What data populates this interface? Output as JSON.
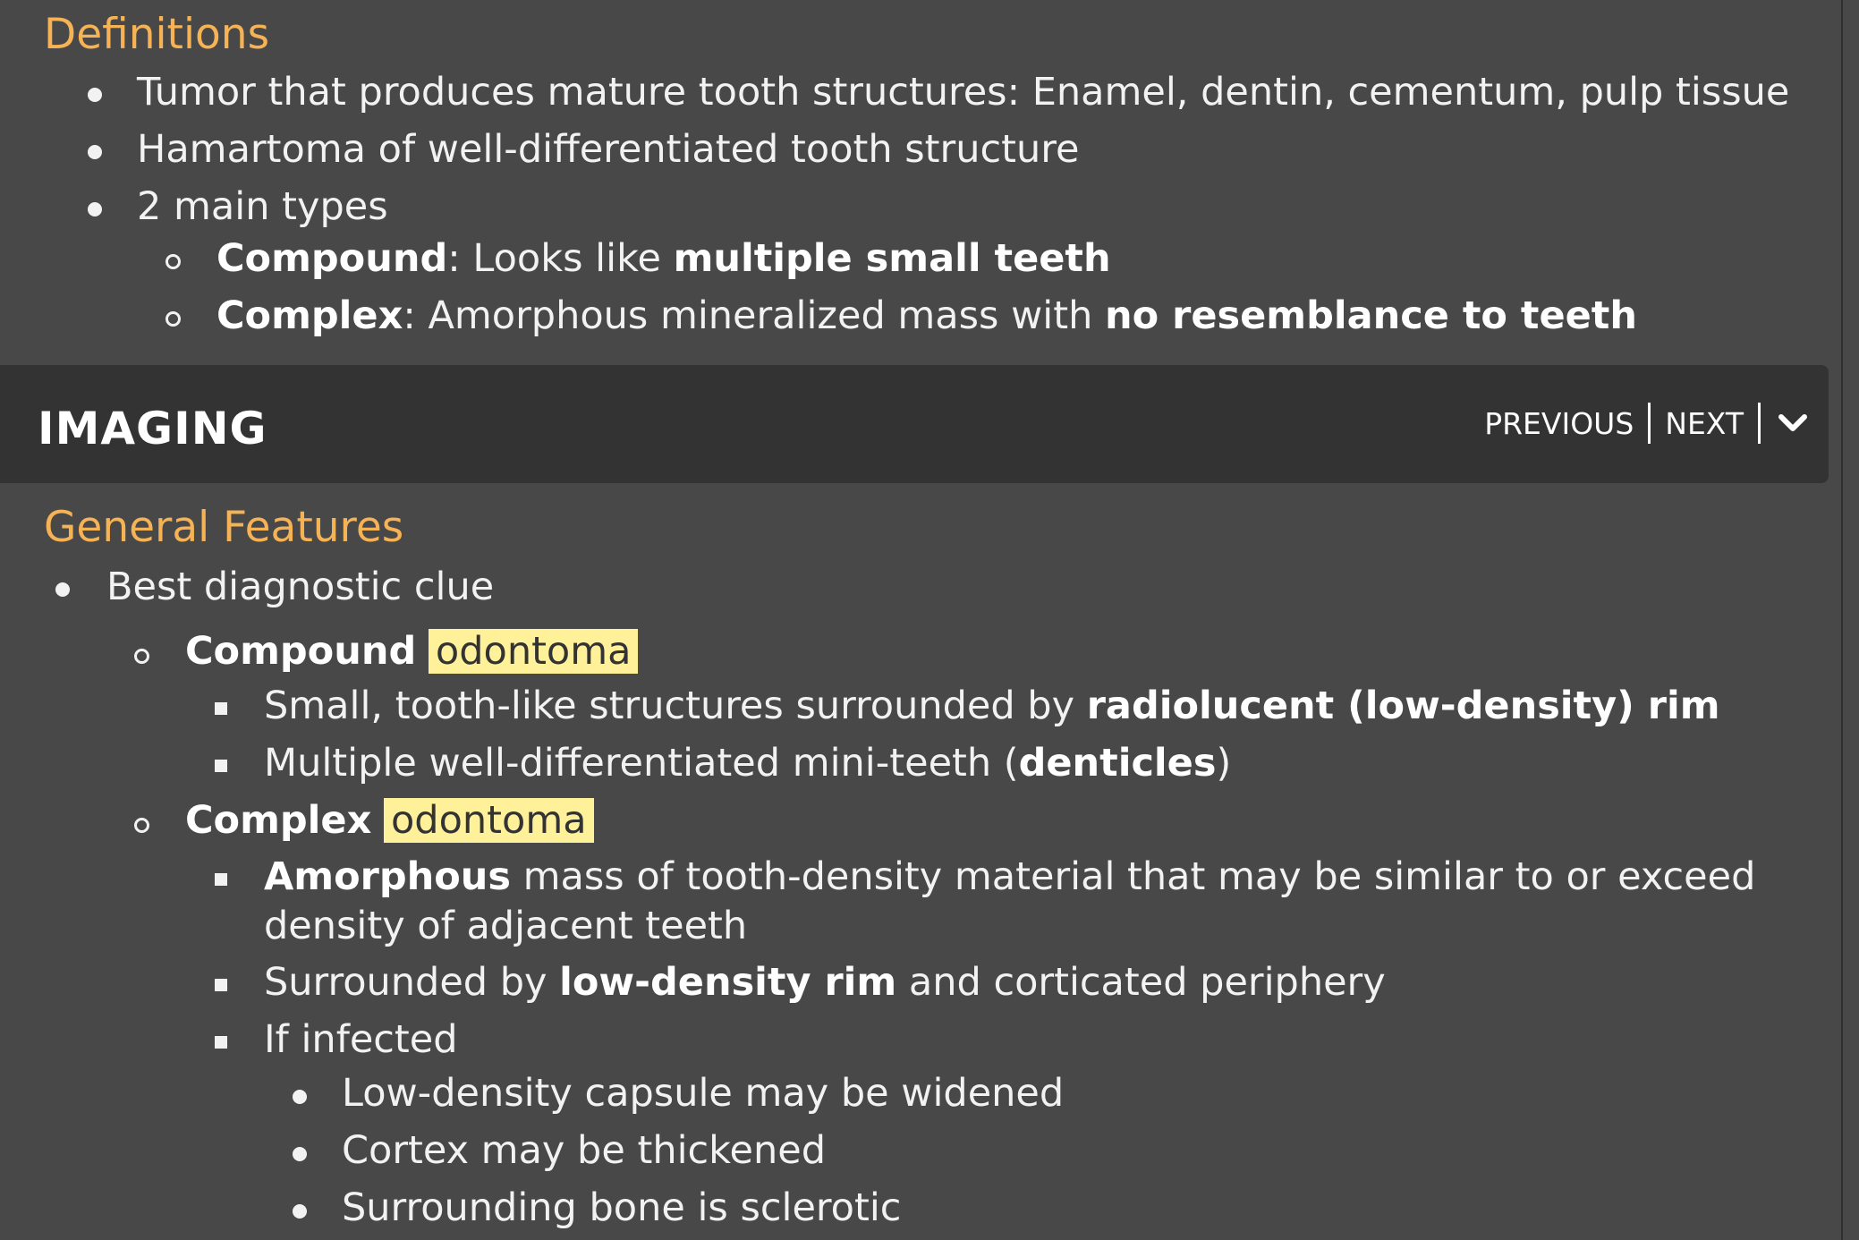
{
  "definitions": {
    "heading": "Definitions",
    "items": [
      "Tumor that produces mature tooth structures: Enamel, dentin, cementum, pulp tissue",
      "Hamartoma of well-differentiated tooth structure",
      "2 main types"
    ],
    "types": [
      {
        "bold": "Compound",
        "text": ": Looks like ",
        "bold2": "multiple small teeth"
      },
      {
        "bold": "Complex",
        "text": ": Amorphous mineralized mass with ",
        "bold2": "no resemblance to teeth"
      }
    ]
  },
  "imaging_header": {
    "title": "IMAGING",
    "previous": "PREVIOUS",
    "next": "NEXT",
    "collapse_icon": "chevron-down-icon"
  },
  "general_features": {
    "heading": "General Features",
    "best_clue": "Best diagnostic clue",
    "compound": {
      "label": "Compound",
      "highlight": "odontoma",
      "items": [
        {
          "text": "Small, tooth-like structures surrounded by ",
          "bold": "radiolucent (low-density) rim",
          "after": ""
        },
        {
          "text": "Multiple well-differentiated mini-teeth (",
          "bold": "denticles",
          "after": ")"
        }
      ]
    },
    "complex": {
      "label": "Complex",
      "highlight": "odontoma",
      "amorphous_bold": "Amorphous",
      "amorphous_text_1": " mass of tooth-density material that may be similar to or exceed",
      "amorphous_text_2": "density of adjacent teeth",
      "surrounded_text": "Surrounded by ",
      "surrounded_bold": "low-density rim",
      "surrounded_after": " and corticated periphery",
      "if_infected": "If infected",
      "infected_items": [
        "Low-density capsule may be widened",
        "Cortex may be thickened",
        "Surrounding bone is sclerotic"
      ]
    }
  },
  "colors": {
    "background": "#484848",
    "header_bar": "#333333",
    "heading_accent": "#f6b355",
    "highlight": "#fff09a"
  }
}
